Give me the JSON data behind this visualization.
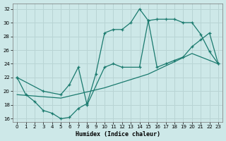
{
  "xlabel": "Humidex (Indice chaleur)",
  "bg_color": "#cde8e8",
  "grid_color": "#b8d8d8",
  "line_color": "#1a7a6e",
  "xlim": [
    -0.5,
    23.5
  ],
  "ylim": [
    15.5,
    32.8
  ],
  "xticks": [
    0,
    1,
    2,
    3,
    4,
    5,
    6,
    7,
    8,
    9,
    10,
    11,
    12,
    13,
    14,
    15,
    16,
    17,
    18,
    19,
    20,
    21,
    22,
    23
  ],
  "yticks": [
    16,
    18,
    20,
    22,
    24,
    26,
    28,
    30,
    32
  ],
  "curve1_x": [
    0,
    1,
    2,
    3,
    4,
    5,
    6,
    7,
    8,
    9,
    10,
    11,
    12,
    13,
    14,
    15,
    16,
    17,
    18,
    19,
    20,
    21,
    22,
    23
  ],
  "curve1_y": [
    22,
    19.5,
    18.5,
    17.2,
    16.8,
    16.0,
    16.2,
    17.5,
    18.2,
    22.5,
    28.5,
    29.0,
    29.0,
    30.0,
    32.0,
    30.3,
    30.5,
    30.5,
    30.5,
    30.0,
    30.0,
    28.3,
    25.8,
    24.0
  ],
  "curve2_x": [
    0,
    3,
    5,
    6,
    7,
    8,
    10,
    11,
    12,
    14,
    15,
    16,
    17,
    18,
    19,
    20,
    21,
    22,
    23
  ],
  "curve2_y": [
    22,
    20.0,
    19.5,
    21.0,
    23.5,
    18.0,
    23.5,
    24.0,
    23.5,
    23.5,
    30.3,
    23.5,
    24.0,
    24.5,
    25.0,
    26.5,
    27.5,
    28.5,
    24.0
  ],
  "curve3_x": [
    0,
    5,
    10,
    15,
    20,
    23
  ],
  "curve3_y": [
    19.5,
    19.0,
    20.5,
    22.5,
    25.5,
    24.0
  ]
}
